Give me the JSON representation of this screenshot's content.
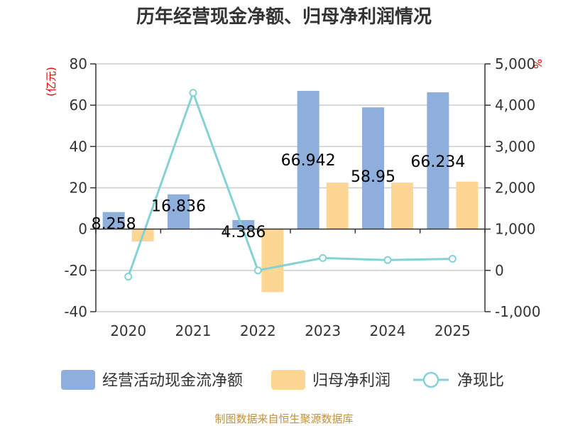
{
  "chart_data": {
    "type": "bar+line",
    "title": "历年经营现金净额、归母净利润情况",
    "categories": [
      "2020",
      "2021",
      "2022",
      "2023",
      "2024",
      "2025"
    ],
    "series": [
      {
        "name": "经营活动现金流净额",
        "type": "bar",
        "axis": "left",
        "color": "#8eaedb",
        "values": [
          8.258,
          16.836,
          4.386,
          66.942,
          58.95,
          66.234
        ]
      },
      {
        "name": "归母净利润",
        "type": "bar",
        "axis": "left",
        "color": "#fdd694",
        "values": [
          -6,
          0.5,
          -30.5,
          22.5,
          22.5,
          23
        ]
      },
      {
        "name": "净现比",
        "type": "line",
        "axis": "right",
        "color": "#84d2d4",
        "values": [
          -150,
          4300,
          0,
          300,
          250,
          280
        ]
      }
    ],
    "data_labels": [
      "8.258",
      "16.836",
      "4.386",
      "66.942",
      "58.95",
      "66.234"
    ],
    "y_left": {
      "unit": "(亿元)",
      "ylim": [
        -40,
        80
      ],
      "ticks": [
        "-40",
        "-20",
        "0",
        "20",
        "40",
        "60",
        "80"
      ],
      "tick_values": [
        -40,
        -20,
        0,
        20,
        40,
        60,
        80
      ]
    },
    "y_right": {
      "unit": "%",
      "ylim": [
        -1000,
        5000
      ],
      "ticks": [
        "-1,000",
        "0",
        "1,000",
        "2,000",
        "3,000",
        "4,000",
        "5,000"
      ],
      "tick_values": [
        -1000,
        0,
        1000,
        2000,
        3000,
        4000,
        5000
      ]
    },
    "legend": [
      "经营活动现金流净额",
      "归母净利润",
      "净现比"
    ],
    "source": "制图数据来自恒生聚源数据库"
  }
}
